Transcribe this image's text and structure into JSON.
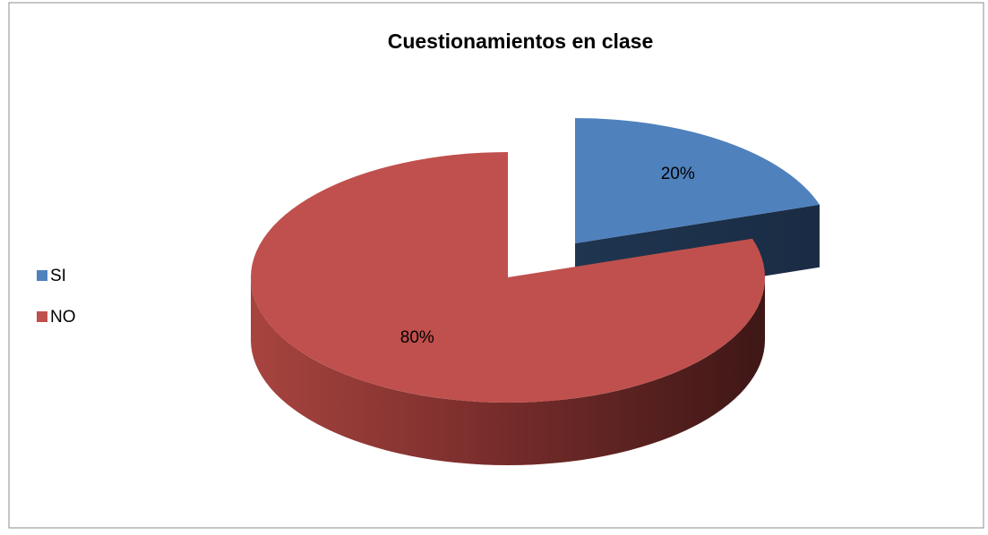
{
  "chart_data": {
    "type": "pie",
    "title": "Cuestionamientos en clase",
    "categories": [
      "SI",
      "NO"
    ],
    "values": [
      20,
      80
    ],
    "value_labels": [
      "20%",
      "80%"
    ],
    "colors": [
      "#4f81bd",
      "#c0504d"
    ],
    "legend": "left"
  }
}
